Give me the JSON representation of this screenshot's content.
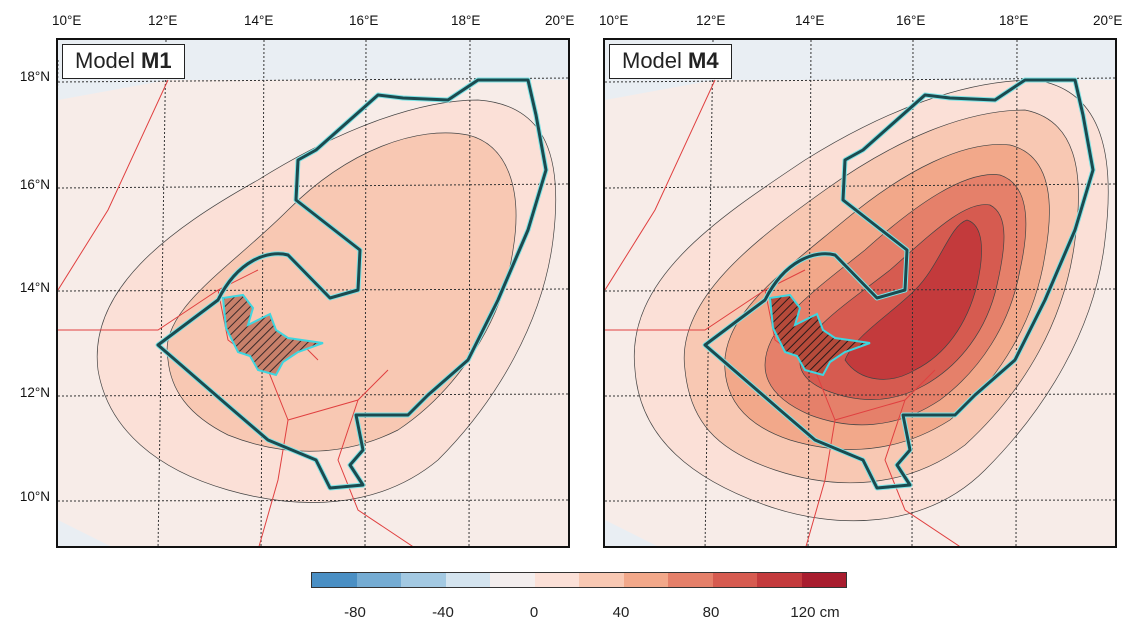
{
  "panels": [
    {
      "label_prefix": "Model ",
      "label_bold": "M1"
    },
    {
      "label_prefix": "Model ",
      "label_bold": "M4"
    }
  ],
  "longitude_ticks": [
    "10°E",
    "12°E",
    "14°E",
    "16°E",
    "18°E",
    "20°E"
  ],
  "latitude_ticks": [
    "18°N",
    "16°N",
    "14°N",
    "12°N",
    "10°N"
  ],
  "colorbar": {
    "colors": [
      "#4a8fc4",
      "#75acd3",
      "#a3c9e2",
      "#d4e4ef",
      "#f3eeee",
      "#fbe0d7",
      "#f8c8b3",
      "#f2a88a",
      "#e5806a",
      "#d65b50",
      "#c33a3c",
      "#a81c2e"
    ],
    "tick_labels": [
      "-80",
      "-40",
      "0",
      "40",
      "80",
      "120 cm"
    ]
  },
  "colors": {
    "outline_dark": "#1b4a4f",
    "outline_light": "#7fe4e6",
    "borders": "#e04040"
  }
}
